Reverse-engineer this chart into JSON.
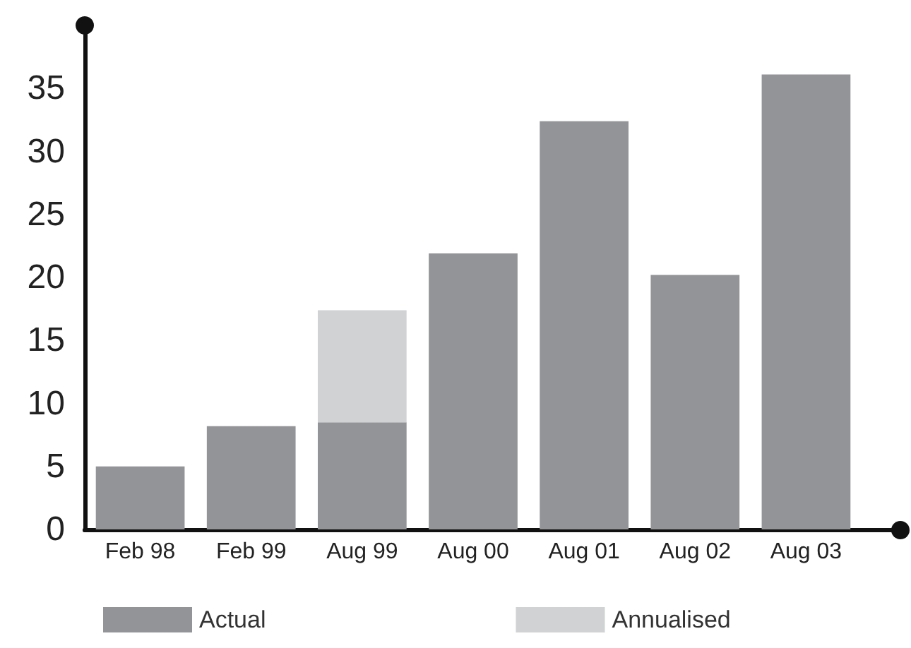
{
  "chart_data": {
    "type": "bar",
    "stacked": true,
    "categories": [
      "Feb 98",
      "Feb 99",
      "Aug 99",
      "Aug 00",
      "Aug 01",
      "Aug 02",
      "Aug 03"
    ],
    "series": [
      {
        "name": "Actual",
        "color": "#939497",
        "values": [
          5.0,
          8.2,
          8.5,
          21.9,
          32.4,
          20.2,
          36.1
        ]
      },
      {
        "name": "Annualised",
        "color": "#d1d2d4",
        "values": [
          null,
          null,
          8.9,
          null,
          null,
          null,
          null
        ]
      }
    ],
    "ylim": [
      0,
      40
    ],
    "yticks": [
      0,
      5,
      10,
      15,
      20,
      25,
      30,
      35
    ],
    "grid": false,
    "legend": "bottom left"
  }
}
